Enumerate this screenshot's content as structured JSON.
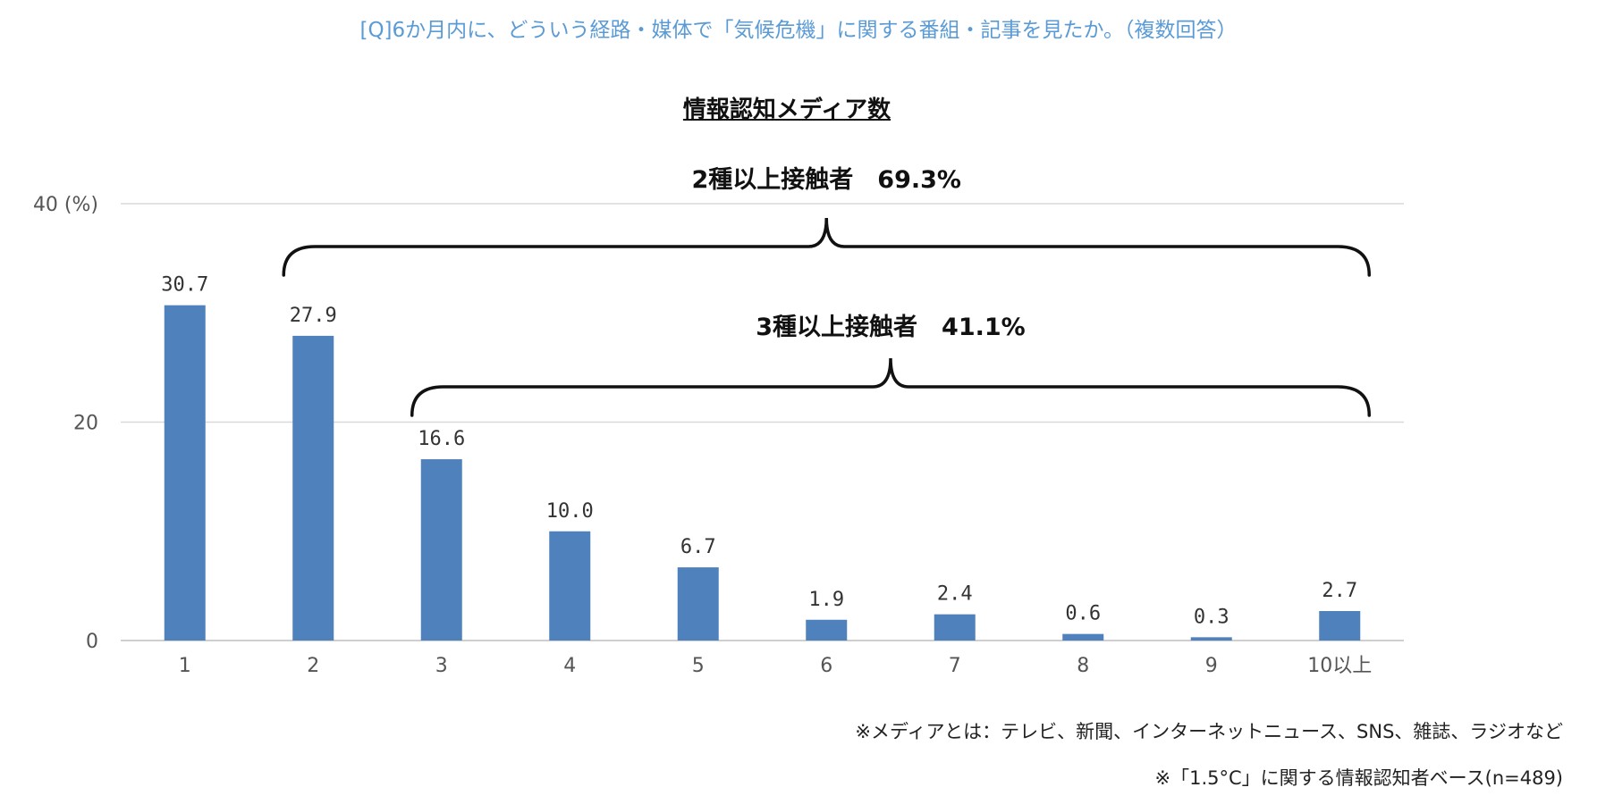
{
  "question": "[Q]6か月内に、どういう経路・媒体で「気候危機」に関する番組・記事を見たか。（複数回答）",
  "notes": {
    "media_definition": "※メディアとは：テレビ、新聞、インターネットニュース、SNS、雑誌、ラジオなど",
    "base": "※「1.5°C」に関する情報認知者ベース(n=489)"
  },
  "chart_data": {
    "type": "bar",
    "title": "情報認知メディア数",
    "categories": [
      "1",
      "2",
      "3",
      "4",
      "5",
      "6",
      "7",
      "8",
      "9",
      "10以上"
    ],
    "values": [
      30.7,
      27.9,
      16.6,
      10.0,
      6.7,
      1.9,
      2.4,
      0.6,
      0.3,
      2.7
    ],
    "value_labels": [
      "30.7",
      "27.9",
      "16.6",
      "10.0",
      "6.7",
      "1.9",
      "2.4",
      "0.6",
      "0.3",
      "2.7"
    ],
    "ylim": [
      0,
      40
    ],
    "yticks": [
      "0",
      "20",
      "40 (%)"
    ],
    "grid": true,
    "bar_color": "#4f81bd",
    "annotations": [
      {
        "label": "2種以上接触者　69.3%",
        "from_category": "2",
        "to_category": "10以上"
      },
      {
        "label": "3種以上接触者　41.1%",
        "from_category": "3",
        "to_category": "10以上"
      }
    ]
  }
}
